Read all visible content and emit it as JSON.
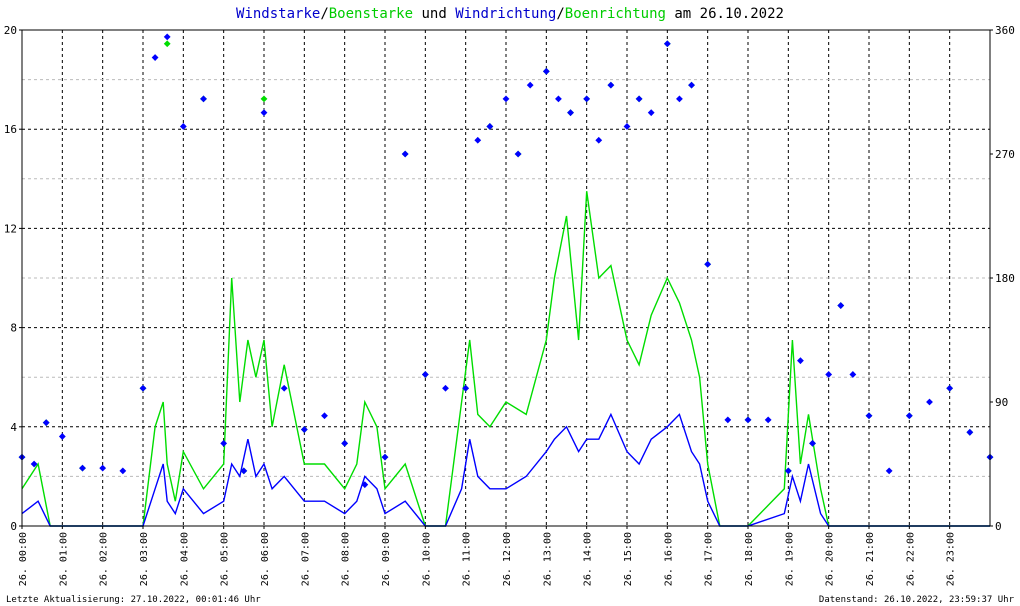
{
  "chart_data": {
    "type": "line",
    "title_parts": [
      {
        "text": "Windstarke",
        "color": "#0000cc"
      },
      {
        "text": "/",
        "color": "#000000"
      },
      {
        "text": "Boenstarke",
        "color": "#00cc00"
      },
      {
        "text": " und ",
        "color": "#000000"
      },
      {
        "text": "Windrichtung",
        "color": "#0000cc"
      },
      {
        "text": "/",
        "color": "#000000"
      },
      {
        "text": "Boenrichtung",
        "color": "#00cc00"
      },
      {
        "text": " am 26.10.2022",
        "color": "#000000"
      }
    ],
    "left_ylim": [
      0,
      20
    ],
    "left_yticks": [
      "0",
      "4",
      "8",
      "12",
      "16",
      "20"
    ],
    "right_ylim": [
      0,
      360
    ],
    "right_yticks": [
      "0",
      "90",
      "180",
      "270",
      "360"
    ],
    "xlim_hours": [
      0,
      24
    ],
    "xticks": [
      "26. 00:00",
      "26. 01:00",
      "26. 02:00",
      "26. 03:00",
      "26. 04:00",
      "26. 05:00",
      "26. 06:00",
      "26. 07:00",
      "26. 08:00",
      "26. 09:00",
      "26. 10:00",
      "26. 11:00",
      "26. 12:00",
      "26. 13:00",
      "26. 14:00",
      "26. 15:00",
      "26. 16:00",
      "26. 17:00",
      "26. 18:00",
      "26. 19:00",
      "26. 20:00",
      "26. 21:00",
      "26. 22:00",
      "26. 23:00"
    ],
    "grid": true,
    "colors": {
      "wind": "#0000ff",
      "gust": "#00dd00",
      "axes": "#000000",
      "grid": "#000000",
      "minor_grid": "#bbbbbb"
    },
    "series": [
      {
        "name": "Windstarke",
        "axis": "left",
        "style": "line",
        "x": [
          0.0,
          0.4,
          0.7,
          0.9,
          1.5,
          2.5,
          3.0,
          3.3,
          3.5,
          3.6,
          3.8,
          4.0,
          4.5,
          5.0,
          5.2,
          5.4,
          5.6,
          5.8,
          6.0,
          6.2,
          6.5,
          7.0,
          7.5,
          8.0,
          8.3,
          8.5,
          8.8,
          9.0,
          9.5,
          10.0,
          10.5,
          10.9,
          11.1,
          11.3,
          11.6,
          12.0,
          12.5,
          13.0,
          13.2,
          13.5,
          13.8,
          14.0,
          14.3,
          14.6,
          15.0,
          15.3,
          15.6,
          16.0,
          16.3,
          16.6,
          16.8,
          17.0,
          17.3,
          18.0,
          18.9,
          19.1,
          19.3,
          19.5,
          19.8,
          20.0,
          21.0,
          22.0,
          23.0,
          24.0
        ],
        "y": [
          0.5,
          1.0,
          0.0,
          0.0,
          0.0,
          0.0,
          0.0,
          1.5,
          2.5,
          1.0,
          0.5,
          1.5,
          0.5,
          1.0,
          2.5,
          2.0,
          3.5,
          2.0,
          2.5,
          1.5,
          2.0,
          1.0,
          1.0,
          0.5,
          1.0,
          2.0,
          1.5,
          0.5,
          1.0,
          0.0,
          0.0,
          1.5,
          3.5,
          2.0,
          1.5,
          1.5,
          2.0,
          3.0,
          3.5,
          4.0,
          3.0,
          3.5,
          3.5,
          4.5,
          3.0,
          2.5,
          3.5,
          4.0,
          4.5,
          3.0,
          2.5,
          1.0,
          0.0,
          0.0,
          0.5,
          2.0,
          1.0,
          2.5,
          0.5,
          0.0,
          0.0,
          0.0,
          0.0,
          0.0
        ]
      },
      {
        "name": "Boenstarke",
        "axis": "left",
        "style": "line",
        "x": [
          0.0,
          0.4,
          0.7,
          0.9,
          1.5,
          2.5,
          3.0,
          3.3,
          3.5,
          3.6,
          3.8,
          4.0,
          4.5,
          5.0,
          5.2,
          5.4,
          5.6,
          5.8,
          6.0,
          6.2,
          6.5,
          7.0,
          7.5,
          8.0,
          8.3,
          8.5,
          8.8,
          9.0,
          9.5,
          10.0,
          10.5,
          10.9,
          11.1,
          11.3,
          11.6,
          12.0,
          12.5,
          13.0,
          13.2,
          13.5,
          13.8,
          14.0,
          14.3,
          14.6,
          15.0,
          15.3,
          15.6,
          16.0,
          16.3,
          16.6,
          16.8,
          17.0,
          17.3,
          18.0,
          18.9,
          19.1,
          19.3,
          19.5,
          19.8,
          20.0,
          21.0,
          22.0,
          23.0,
          24.0
        ],
        "y": [
          1.5,
          2.5,
          0.0,
          0.0,
          0.0,
          0.0,
          0.0,
          4.0,
          5.0,
          2.5,
          1.0,
          3.0,
          1.5,
          2.5,
          10.0,
          5.0,
          7.5,
          6.0,
          7.5,
          4.0,
          6.5,
          2.5,
          2.5,
          1.5,
          2.5,
          5.0,
          4.0,
          1.5,
          2.5,
          0.0,
          0.0,
          5.0,
          7.5,
          4.5,
          4.0,
          5.0,
          4.5,
          7.5,
          10.0,
          12.5,
          7.5,
          13.5,
          10.0,
          10.5,
          7.5,
          6.5,
          8.5,
          10.0,
          9.0,
          7.5,
          6.0,
          2.5,
          0.0,
          0.0,
          1.5,
          7.5,
          2.5,
          4.5,
          1.5,
          0.0,
          0.0,
          0.0,
          0.0,
          0.0
        ]
      },
      {
        "name": "Windrichtung",
        "axis": "right",
        "style": "scatter",
        "x": [
          0.0,
          0.3,
          0.6,
          1.0,
          1.5,
          2.0,
          2.5,
          3.0,
          3.3,
          3.6,
          4.0,
          4.5,
          5.0,
          5.5,
          6.0,
          6.5,
          7.0,
          7.5,
          8.0,
          8.5,
          9.0,
          9.5,
          10.0,
          10.5,
          11.0,
          11.3,
          11.6,
          12.0,
          12.3,
          12.6,
          13.0,
          13.3,
          13.6,
          14.0,
          14.3,
          14.6,
          15.0,
          15.3,
          15.6,
          16.0,
          16.3,
          16.6,
          17.0,
          17.5,
          18.0,
          18.5,
          19.0,
          19.3,
          19.6,
          20.0,
          20.3,
          20.6,
          21.0,
          21.5,
          22.0,
          22.5,
          23.0,
          23.5,
          24.0
        ],
        "y": [
          50,
          45,
          75,
          65,
          42,
          42,
          40,
          100,
          340,
          355,
          290,
          310,
          60,
          40,
          300,
          100,
          70,
          80,
          60,
          30,
          50,
          270,
          110,
          100,
          100,
          280,
          290,
          310,
          270,
          320,
          330,
          310,
          300,
          310,
          280,
          320,
          290,
          310,
          300,
          350,
          310,
          320,
          190,
          77,
          77,
          77,
          40,
          120,
          60,
          110,
          160,
          110,
          80,
          40,
          80,
          90,
          100,
          68,
          50
        ]
      },
      {
        "name": "Boenrichtung",
        "axis": "right",
        "style": "scatter",
        "x": [
          0.0,
          0.6,
          1.5,
          3.0,
          3.6,
          4.5,
          5.5,
          6.0,
          7.0,
          8.0,
          9.0,
          9.5,
          10.0,
          11.0,
          11.6,
          12.3,
          13.0,
          13.6,
          14.0,
          14.6,
          15.3,
          16.0,
          16.6,
          17.0,
          18.0,
          19.0,
          19.6,
          20.3,
          21.0,
          22.0,
          23.0,
          23.5,
          24.0
        ],
        "y": [
          50,
          75,
          42,
          100,
          350,
          310,
          40,
          310,
          70,
          60,
          50,
          270,
          110,
          100,
          290,
          270,
          330,
          300,
          310,
          320,
          310,
          350,
          320,
          190,
          77,
          40,
          60,
          160,
          80,
          80,
          100,
          68,
          50
        ]
      }
    ]
  },
  "footer": {
    "left": "Letzte Aktualisierung: 27.10.2022, 00:01:46 Uhr",
    "right": "Datenstand: 26.10.2022, 23:59:37 Uhr"
  }
}
